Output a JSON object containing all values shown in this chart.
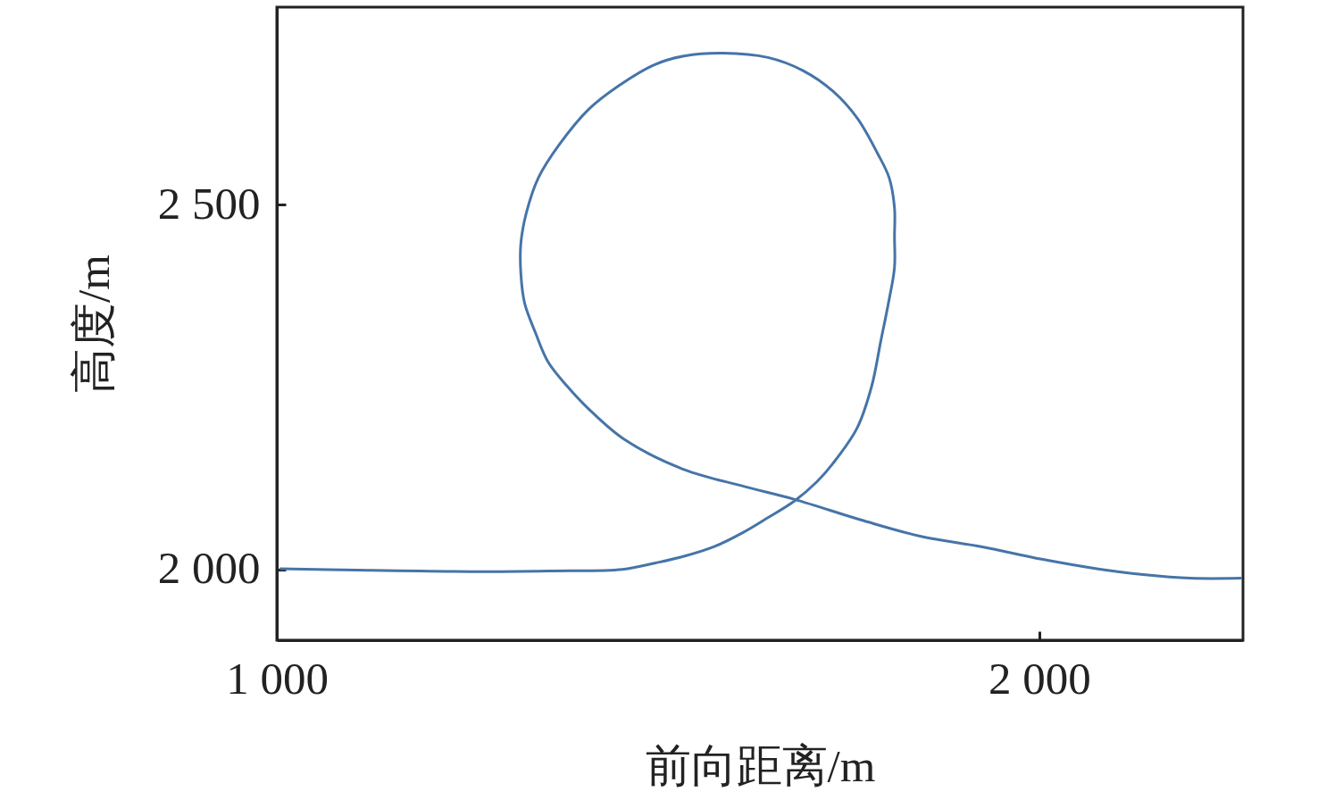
{
  "chart_data": {
    "type": "line",
    "xlabel": "前向距离/m",
    "ylabel": "高度/m",
    "x": [
      1005,
      1105,
      1260,
      1362,
      1453,
      1497,
      1534,
      1573,
      1612,
      1644,
      1679,
      1708,
      1729,
      1761,
      1780,
      1792,
      1802,
      1810,
      1810,
      1810,
      1803,
      1788,
      1761,
      1729,
      1690,
      1644,
      1585,
      1534,
      1495,
      1448,
      1409,
      1370,
      1343,
      1327,
      1320,
      1320,
      1325,
      1339,
      1356,
      1381,
      1409,
      1456,
      1534,
      1612,
      1679,
      1769,
      1846,
      1925,
      2003,
      2081,
      2136,
      2198,
      2264
    ],
    "series": [
      {
        "color": "#4674a8",
        "values": [
          2001,
          1999,
          1997,
          1998,
          2000,
          2009,
          2018,
          2031,
          2051,
          2071,
          2094,
          2120,
          2145,
          2194,
          2251,
          2313,
          2365,
          2414,
          2456,
          2496,
          2537,
          2570,
          2619,
          2656,
          2684,
          2702,
          2708,
          2704,
          2692,
          2663,
          2631,
          2582,
          2537,
          2488,
          2447,
          2406,
          2365,
          2325,
          2284,
          2251,
          2220,
          2178,
          2137,
          2114,
          2096,
          2067,
          2045,
          2031,
          2014,
          2000,
          1993,
          1988,
          1988
        ]
      }
    ],
    "xlim": [
      1000,
      2267
    ],
    "ylim": [
      1903,
      2771
    ],
    "xticks": [
      {
        "value": 1000,
        "label": "1 000"
      },
      {
        "value": 2000,
        "label": "2 000"
      }
    ],
    "yticks": [
      {
        "value": 2000,
        "label": "2 000"
      },
      {
        "value": 2500,
        "label": "2 500"
      }
    ],
    "grid": false,
    "line_style": "solid"
  }
}
